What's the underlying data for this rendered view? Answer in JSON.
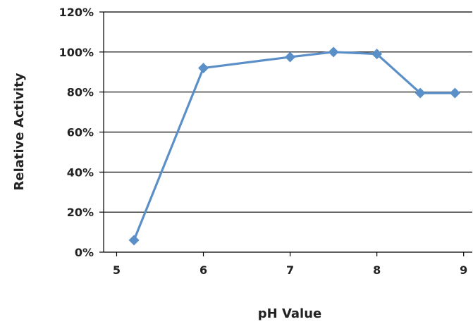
{
  "chart_data": {
    "type": "line",
    "xlabel": "pH Value",
    "ylabel": "Relative Activity",
    "xlim": [
      4.85,
      9.1
    ],
    "ylim": [
      0,
      120
    ],
    "x_ticks": [
      5,
      6,
      7,
      8,
      9
    ],
    "y_ticks": [
      0,
      20,
      40,
      60,
      80,
      100,
      120
    ],
    "y_tick_labels": [
      "0%",
      "20%",
      "40%",
      "60%",
      "80%",
      "100%",
      "120%"
    ],
    "grid": true,
    "marker": "diamond",
    "series": [
      {
        "color": "#5b8fc7",
        "x": [
          5.2,
          6.0,
          7.0,
          7.5,
          8.0,
          8.5,
          8.9
        ],
        "values": [
          6,
          92,
          97.5,
          100,
          99,
          79.5,
          79.5
        ]
      }
    ]
  }
}
